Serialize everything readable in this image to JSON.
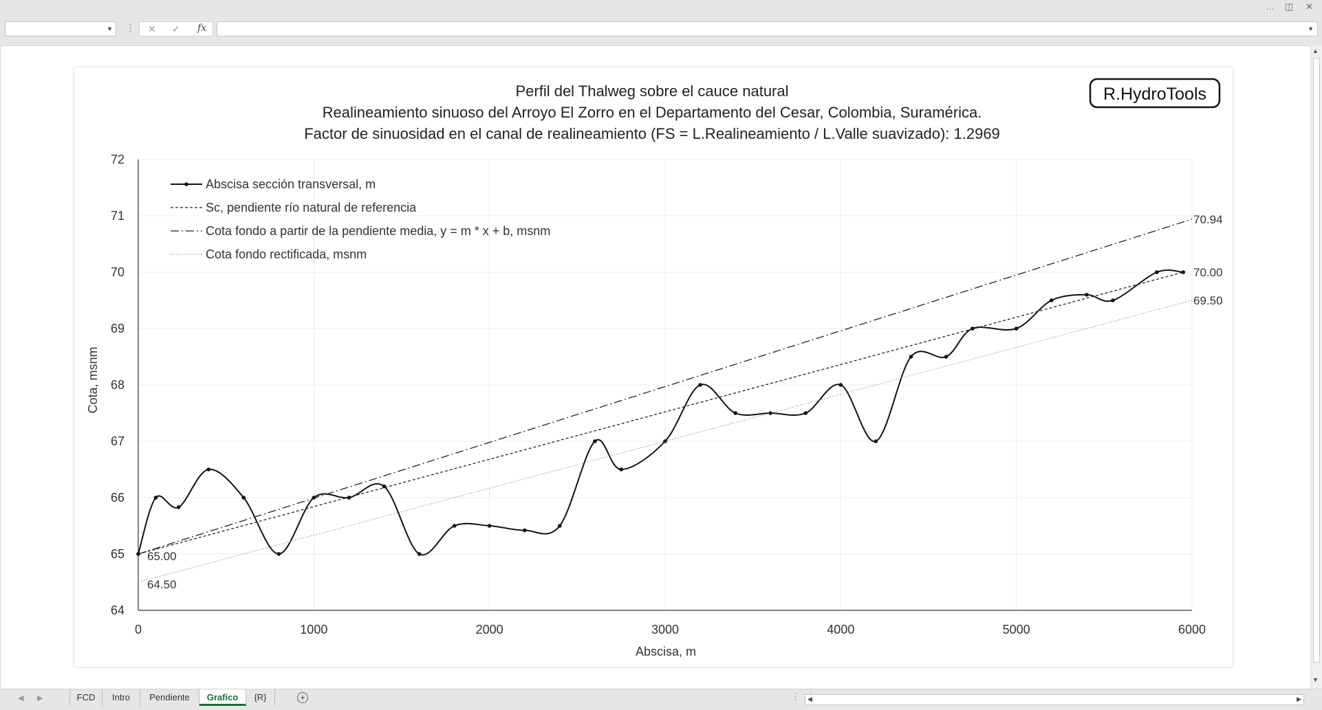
{
  "window": {
    "more_icon": "…",
    "restore_icon": "◫",
    "close_icon": "✕"
  },
  "formula_bar": {
    "name_box": "",
    "fx_label": "fx",
    "formula": ""
  },
  "sheet_tabs": [
    {
      "label": "FCD",
      "active": false
    },
    {
      "label": "Intro",
      "active": false
    },
    {
      "label": "Pendiente",
      "active": false
    },
    {
      "label": "Grafico",
      "active": true
    },
    {
      "label": "{R}",
      "active": false
    }
  ],
  "chart_data": {
    "type": "line",
    "title_lines": [
      "Perfil del Thalweg sobre el cauce natural",
      "Realineamiento sinuoso del Arroyo El Zorro en el Departamento del Cesar, Colombia, Suramérica.",
      "Factor de sinuosidad en el canal de realineamiento (FS = L.Realineamiento / L.Valle suavizado): 1.2969"
    ],
    "logo": "R.HydroTools",
    "xlabel": "Abscisa, m",
    "ylabel": "Cota, msnm",
    "xlim": [
      0,
      6000
    ],
    "ylim": [
      64,
      72
    ],
    "xticks": [
      0,
      1000,
      2000,
      3000,
      4000,
      5000,
      6000
    ],
    "yticks": [
      64,
      65,
      66,
      67,
      68,
      69,
      70,
      71,
      72
    ],
    "grid": true,
    "legend_position": "top-left",
    "series": [
      {
        "name": "Abscisa sección transversal, m",
        "style": "solid-markers",
        "x": [
          0,
          100,
          230,
          400,
          600,
          800,
          1000,
          1200,
          1400,
          1600,
          1800,
          2000,
          2200,
          2400,
          2600,
          2750,
          3000,
          3200,
          3400,
          3600,
          3800,
          4000,
          4200,
          4400,
          4600,
          4750,
          5000,
          5200,
          5400,
          5550,
          5800,
          5950
        ],
        "y": [
          65.0,
          66.0,
          65.83,
          66.5,
          66.0,
          65.0,
          66.0,
          66.0,
          66.2,
          65.0,
          65.5,
          65.5,
          65.42,
          65.5,
          67.0,
          66.5,
          67.0,
          68.0,
          67.5,
          67.5,
          67.5,
          68.0,
          67.0,
          68.5,
          68.5,
          69.0,
          69.0,
          69.5,
          69.6,
          69.5,
          70.0,
          70.0
        ]
      },
      {
        "name": "Sc, pendiente río natural de referencia",
        "style": "dotted",
        "x": [
          0,
          5950
        ],
        "y": [
          65.0,
          70.0
        ]
      },
      {
        "name": "Cota fondo a partir de la pendiente media, y = m * x + b, msnm",
        "style": "dash-dot",
        "x": [
          0,
          6000
        ],
        "y": [
          65.0,
          70.94
        ]
      },
      {
        "name": "Cota fondo rectificada, msnm",
        "style": "fine-dotted",
        "x": [
          0,
          6000
        ],
        "y": [
          64.5,
          69.5
        ]
      }
    ],
    "annotations": [
      {
        "text": "65.00",
        "x": 0,
        "y": 65.0
      },
      {
        "text": "64.50",
        "x": 0,
        "y": 64.5
      },
      {
        "text": "70.94",
        "x": 6000,
        "y": 70.94
      },
      {
        "text": "70.00",
        "x": 5950,
        "y": 70.0
      },
      {
        "text": "69.50",
        "x": 6000,
        "y": 69.5
      }
    ]
  }
}
